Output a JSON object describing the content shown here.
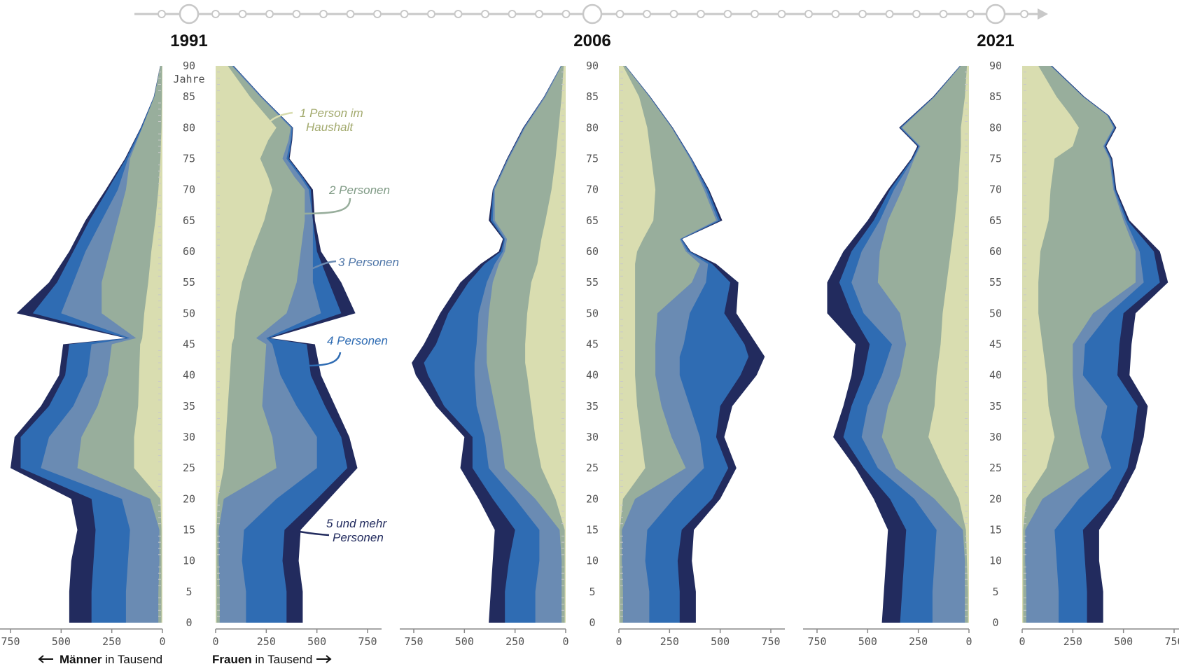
{
  "colors": {
    "c1": "#d9ddb0",
    "c2": "#98ae9c",
    "c3": "#6a8bb3",
    "c4": "#2f6cb3",
    "c5": "#222b5e",
    "axis": "#888888",
    "timeline": "#c8c8c8"
  },
  "labels": {
    "unit": "Jahre",
    "men": "Männer",
    "women": "Frauen",
    "in_thousand": "in Tausend"
  },
  "annotations": {
    "one_person_l1": "1 Person im",
    "one_person_l2": "Haushalt",
    "two_persons": "2 Personen",
    "three_persons": "3 Personen",
    "four_persons": "4 Personen",
    "five_l1": "5 und mehr",
    "five_l2": "Personen"
  },
  "chart_data": {
    "type": "area",
    "series_names": [
      "1 Person im Haushalt",
      "2 Personen",
      "3 Personen",
      "4 Personen",
      "5 und mehr Personen"
    ],
    "age_ticks": [
      0,
      5,
      10,
      15,
      20,
      25,
      30,
      35,
      40,
      45,
      50,
      55,
      60,
      65,
      70,
      75,
      80,
      85,
      90
    ],
    "x_ticks": [
      750,
      500,
      250,
      0
    ],
    "x_ticks_right": [
      0,
      250,
      500,
      750
    ],
    "xlim": [
      0,
      750
    ],
    "ylim": [
      0,
      90
    ],
    "panels": [
      {
        "year": "1991",
        "men": {
          "ages": [
            0,
            5,
            10,
            15,
            20,
            25,
            30,
            35,
            40,
            45,
            46,
            50,
            55,
            60,
            65,
            70,
            75,
            80,
            85,
            90
          ],
          "c1": [
            5,
            5,
            5,
            5,
            10,
            140,
            140,
            120,
            115,
            110,
            100,
            90,
            70,
            55,
            35,
            20,
            10,
            5,
            3,
            2
          ],
          "c2": [
            20,
            20,
            15,
            15,
            60,
            420,
            400,
            320,
            270,
            250,
            130,
            300,
            300,
            260,
            220,
            180,
            160,
            100,
            40,
            10
          ],
          "c3": [
            180,
            180,
            170,
            160,
            200,
            600,
            560,
            440,
            370,
            350,
            160,
            500,
            440,
            380,
            300,
            220,
            170,
            100,
            40,
            10
          ],
          "c4": [
            350,
            350,
            340,
            330,
            350,
            700,
            700,
            560,
            480,
            460,
            175,
            640,
            520,
            440,
            360,
            270,
            180,
            105,
            42,
            10
          ],
          "c5": [
            460,
            460,
            450,
            420,
            450,
            750,
            730,
            600,
            510,
            490,
            180,
            720,
            560,
            460,
            380,
            280,
            185,
            107,
            43,
            11
          ]
        },
        "women": {
          "ages": [
            0,
            5,
            10,
            15,
            20,
            25,
            30,
            35,
            40,
            45,
            46,
            50,
            55,
            60,
            65,
            70,
            72,
            75,
            78,
            80,
            85,
            90
          ],
          "c1": [
            5,
            5,
            5,
            5,
            10,
            40,
            50,
            60,
            70,
            80,
            90,
            100,
            130,
            180,
            240,
            280,
            260,
            220,
            260,
            300,
            170,
            60
          ],
          "c2": [
            20,
            20,
            15,
            15,
            40,
            300,
            280,
            230,
            240,
            250,
            200,
            350,
            400,
            420,
            440,
            440,
            390,
            330,
            360,
            370,
            220,
            80
          ],
          "c3": [
            150,
            150,
            130,
            140,
            300,
            500,
            500,
            400,
            320,
            280,
            250,
            520,
            480,
            480,
            480,
            460,
            420,
            350,
            370,
            375,
            225,
            85
          ],
          "c4": [
            350,
            350,
            330,
            340,
            500,
            650,
            620,
            540,
            470,
            450,
            260,
            620,
            560,
            500,
            480,
            470,
            430,
            360,
            375,
            380,
            228,
            88
          ],
          "c5": [
            430,
            430,
            410,
            420,
            560,
            700,
            660,
            590,
            520,
            490,
            270,
            690,
            620,
            520,
            490,
            480,
            435,
            365,
            378,
            382,
            230,
            90
          ]
        }
      },
      {
        "year": "2006",
        "men": {
          "ages": [
            0,
            5,
            10,
            15,
            20,
            25,
            30,
            35,
            40,
            42,
            45,
            50,
            55,
            58,
            60,
            62,
            65,
            70,
            75,
            80,
            85,
            90
          ],
          "c1": [
            5,
            5,
            5,
            5,
            50,
            120,
            150,
            170,
            190,
            200,
            200,
            190,
            170,
            140,
            130,
            120,
            100,
            70,
            50,
            35,
            20,
            10
          ],
          "c2": [
            20,
            20,
            20,
            30,
            150,
            300,
            320,
            350,
            380,
            390,
            390,
            380,
            360,
            330,
            300,
            290,
            350,
            350,
            280,
            200,
            100,
            20
          ],
          "c3": [
            150,
            150,
            130,
            130,
            250,
            380,
            400,
            440,
            450,
            450,
            440,
            430,
            390,
            350,
            310,
            300,
            360,
            355,
            285,
            205,
            105,
            22
          ],
          "c4": [
            300,
            300,
            280,
            250,
            360,
            460,
            460,
            600,
            680,
            700,
            640,
            580,
            480,
            400,
            320,
            305,
            370,
            358,
            287,
            207,
            106,
            23
          ],
          "c5": [
            380,
            370,
            360,
            350,
            430,
            520,
            500,
            640,
            740,
            760,
            700,
            620,
            520,
            420,
            330,
            310,
            380,
            360,
            290,
            210,
            108,
            24
          ]
        },
        "women": {
          "ages": [
            0,
            5,
            10,
            15,
            20,
            25,
            30,
            35,
            40,
            43,
            45,
            50,
            55,
            58,
            60,
            62,
            65,
            70,
            75,
            80,
            85,
            90
          ],
          "c1": [
            5,
            5,
            5,
            5,
            20,
            130,
            110,
            90,
            80,
            80,
            80,
            80,
            80,
            80,
            90,
            120,
            170,
            180,
            160,
            140,
            100,
            20
          ],
          "c2": [
            20,
            20,
            15,
            15,
            80,
            330,
            260,
            210,
            180,
            180,
            180,
            190,
            360,
            400,
            330,
            300,
            480,
            420,
            350,
            260,
            150,
            30
          ],
          "c3": [
            150,
            150,
            130,
            140,
            270,
            420,
            400,
            350,
            300,
            300,
            320,
            350,
            430,
            440,
            340,
            305,
            490,
            430,
            355,
            262,
            152,
            32
          ],
          "c4": [
            300,
            300,
            290,
            310,
            460,
            540,
            480,
            500,
            600,
            640,
            620,
            520,
            550,
            460,
            350,
            310,
            500,
            440,
            358,
            264,
            154,
            33
          ],
          "c5": [
            380,
            380,
            360,
            370,
            500,
            580,
            520,
            560,
            680,
            720,
            680,
            580,
            590,
            480,
            355,
            312,
            510,
            445,
            360,
            266,
            156,
            34
          ]
        }
      },
      {
        "year": "2021",
        "men": {
          "ages": [
            0,
            5,
            10,
            15,
            20,
            25,
            30,
            35,
            40,
            45,
            50,
            55,
            60,
            65,
            70,
            75,
            77,
            80,
            85,
            90
          ],
          "c1": [
            5,
            5,
            10,
            15,
            50,
            130,
            200,
            170,
            160,
            140,
            130,
            110,
            90,
            70,
            55,
            45,
            40,
            40,
            20,
            10
          ],
          "c2": [
            20,
            20,
            20,
            30,
            170,
            360,
            430,
            400,
            340,
            310,
            340,
            450,
            440,
            400,
            330,
            270,
            240,
            330,
            170,
            40
          ],
          "c3": [
            180,
            180,
            170,
            160,
            270,
            450,
            530,
            500,
            430,
            380,
            520,
            580,
            530,
            440,
            370,
            275,
            245,
            335,
            172,
            42
          ],
          "c4": [
            340,
            330,
            320,
            310,
            390,
            520,
            620,
            580,
            520,
            490,
            580,
            640,
            580,
            470,
            390,
            280,
            250,
            340,
            175,
            44
          ],
          "c5": [
            430,
            420,
            410,
            400,
            470,
            560,
            670,
            620,
            580,
            560,
            700,
            700,
            620,
            500,
            400,
            285,
            255,
            345,
            178,
            45
          ]
        },
        "women": {
          "ages": [
            0,
            5,
            10,
            15,
            20,
            25,
            30,
            35,
            40,
            45,
            50,
            55,
            60,
            65,
            70,
            75,
            77,
            80,
            82,
            85,
            90
          ],
          "c1": [
            5,
            5,
            5,
            5,
            20,
            120,
            160,
            130,
            120,
            100,
            80,
            80,
            90,
            130,
            140,
            160,
            250,
            280,
            240,
            170,
            80
          ],
          "c2": [
            20,
            20,
            15,
            15,
            100,
            330,
            290,
            260,
            250,
            250,
            350,
            560,
            560,
            500,
            450,
            430,
            400,
            450,
            420,
            300,
            140
          ],
          "c3": [
            180,
            180,
            170,
            160,
            280,
            440,
            390,
            420,
            300,
            310,
            430,
            600,
            580,
            510,
            455,
            435,
            405,
            455,
            422,
            302,
            142
          ],
          "c4": [
            320,
            320,
            310,
            300,
            440,
            520,
            550,
            570,
            470,
            480,
            500,
            680,
            650,
            520,
            460,
            440,
            410,
            460,
            425,
            305,
            145
          ],
          "c5": [
            400,
            400,
            380,
            380,
            480,
            560,
            600,
            620,
            530,
            540,
            560,
            720,
            680,
            530,
            465,
            445,
            415,
            465,
            428,
            308,
            148
          ]
        }
      }
    ]
  }
}
